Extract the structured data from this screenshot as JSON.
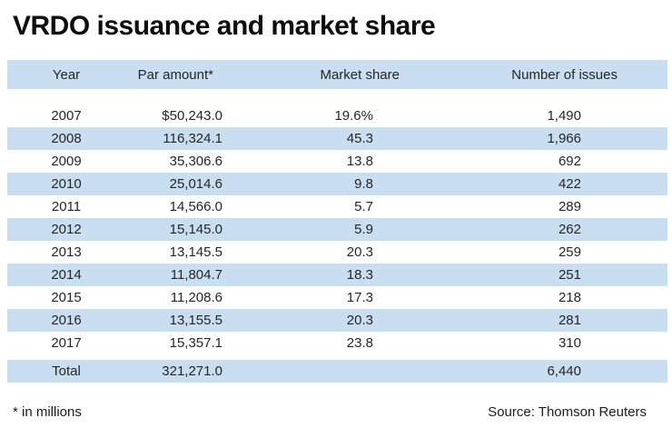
{
  "title": "VRDO issuance and market share",
  "footnote": "* in millions",
  "source": "Source: Thomson Reuters",
  "colors": {
    "band": "#c9def1",
    "text": "#262626",
    "title": "#0d0d0d"
  },
  "table": {
    "columns": [
      "Year",
      "Par amount*",
      "Market share",
      "Number of issues"
    ],
    "rows": [
      [
        "2007",
        "$50,243.0",
        "19.6%",
        "1,490"
      ],
      [
        "2008",
        "116,324.1",
        "45.3",
        "1,966"
      ],
      [
        "2009",
        "35,306.6",
        "13.8",
        "692"
      ],
      [
        "2010",
        "25,014.6",
        "9.8",
        "422"
      ],
      [
        "2011",
        "14,566.0",
        "5.7",
        "289"
      ],
      [
        "2012",
        "15,145.0",
        "5.9",
        "262"
      ],
      [
        "2013",
        "13,145.5",
        "20.3",
        "259"
      ],
      [
        "2014",
        "11,804.7",
        "18.3",
        "251"
      ],
      [
        "2015",
        "11,208.6",
        "17.3",
        "218"
      ],
      [
        "2016",
        "13,155.5",
        "20.3",
        "281"
      ],
      [
        "2017",
        "15,357.1",
        "23.8",
        "310"
      ]
    ],
    "total": [
      "Total",
      "321,271.0",
      "",
      "6,440"
    ]
  },
  "chart_data": {
    "type": "table",
    "title": "VRDO issuance and market share",
    "columns": [
      "Year",
      "Par amount* ($ millions)",
      "Market share (%)",
      "Number of issues"
    ],
    "categories": [
      "2007",
      "2008",
      "2009",
      "2010",
      "2011",
      "2012",
      "2013",
      "2014",
      "2015",
      "2016",
      "2017"
    ],
    "series": [
      {
        "name": "Par amount* ($ millions)",
        "values": [
          50243.0,
          116324.1,
          35306.6,
          25014.6,
          14566.0,
          15145.0,
          13145.5,
          11804.7,
          11208.6,
          13155.5,
          15357.1
        ]
      },
      {
        "name": "Market share (%)",
        "values": [
          19.6,
          45.3,
          13.8,
          9.8,
          5.7,
          5.9,
          20.3,
          18.3,
          17.3,
          20.3,
          23.8
        ]
      },
      {
        "name": "Number of issues",
        "values": [
          1490,
          1966,
          692,
          422,
          289,
          262,
          259,
          251,
          218,
          281,
          310
        ]
      }
    ],
    "totals": {
      "par_amount_millions": 321271.0,
      "number_of_issues": 6440
    },
    "footnote": "* in millions",
    "source": "Source: Thomson Reuters",
    "layout_hints": {
      "zebra_striping": true,
      "striped_rows": [
        "2008",
        "2010",
        "2012",
        "2014",
        "2016",
        "Total",
        "header"
      ],
      "stripe_color": "#c9def1"
    }
  }
}
